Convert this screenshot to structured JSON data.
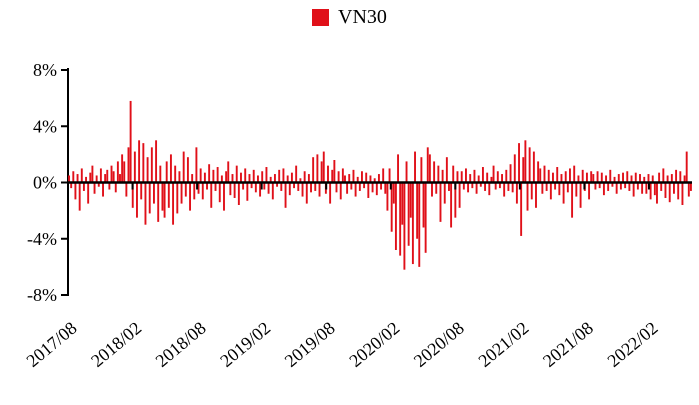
{
  "chart_data": {
    "type": "bar",
    "title": "",
    "legend": [
      "VN30"
    ],
    "legend_position": "top-center",
    "xlabel": "",
    "ylabel": "",
    "ylim": [
      -8,
      8
    ],
    "ytick_values": [
      8,
      4,
      0,
      -4,
      -8
    ],
    "ytick_labels": [
      "8%",
      "4%",
      "0%",
      "-4%",
      "-8%"
    ],
    "xtick_labels": [
      "2017/08",
      "2018/02",
      "2018/08",
      "2019/02",
      "2019/08",
      "2020/02",
      "2020/08",
      "2021/02",
      "2021/08",
      "2022/02"
    ],
    "xtick_month_index": [
      0,
      6,
      12,
      18,
      24,
      30,
      36,
      42,
      48,
      54
    ],
    "total_months": 58,
    "grid": false,
    "bar_color": "#e01019",
    "axis_color": "#000000",
    "series": [
      {
        "name": "VN30",
        "values": [
          0.5,
          -0.4,
          0.8,
          -1.2,
          0.6,
          -2.0,
          1.0,
          -0.6,
          0.4,
          -1.5,
          0.7,
          1.2,
          -0.8,
          0.5,
          -0.3,
          1.0,
          -1.0,
          0.6,
          0.9,
          -0.5,
          1.2,
          0.8,
          -0.7,
          1.5,
          0.6,
          2.0,
          1.5,
          -1.0,
          2.5,
          5.8,
          -1.8,
          2.2,
          -2.5,
          3.0,
          -1.2,
          2.8,
          -3.0,
          1.8,
          -2.2,
          2.5,
          -1.5,
          3.0,
          -2.8,
          1.2,
          -2.0,
          -2.5,
          1.5,
          -1.8,
          2.0,
          -3.0,
          1.2,
          -2.2,
          0.8,
          -1.5,
          2.2,
          -1.0,
          1.8,
          -2.0,
          0.6,
          -1.2,
          2.5,
          -0.8,
          1.0,
          -1.2,
          0.7,
          -0.5,
          1.3,
          -1.8,
          0.9,
          -0.6,
          1.1,
          -1.4,
          0.5,
          -2.0,
          0.8,
          1.5,
          -0.9,
          0.6,
          -1.1,
          1.2,
          -1.6,
          0.7,
          -0.5,
          1.0,
          -1.3,
          0.6,
          -0.4,
          0.9,
          -0.7,
          0.5,
          -1.0,
          0.8,
          -0.5,
          1.1,
          -0.8,
          0.4,
          -1.2,
          0.6,
          -0.3,
          0.9,
          -0.6,
          1.0,
          -1.8,
          0.5,
          -0.9,
          0.7,
          -0.4,
          1.2,
          -0.6,
          0.3,
          -1.0,
          0.8,
          -1.5,
          0.6,
          -0.7,
          1.8,
          -0.6,
          2.0,
          -1.0,
          1.5,
          2.2,
          -0.8,
          1.2,
          -1.5,
          0.9,
          1.6,
          -0.7,
          0.8,
          -1.2,
          1.0,
          0.5,
          -0.8,
          0.6,
          -0.5,
          0.9,
          -1.0,
          0.4,
          -0.6,
          0.8,
          -0.4,
          0.7,
          -1.1,
          0.5,
          -0.7,
          0.3,
          -0.9,
          0.6,
          -0.5,
          1.0,
          -0.8,
          -2.0,
          1.0,
          -3.5,
          -1.5,
          -4.8,
          2.0,
          -5.2,
          -3.0,
          -6.2,
          1.5,
          -4.5,
          -2.5,
          -5.8,
          2.2,
          -4.0,
          -6.0,
          1.8,
          -3.2,
          -5.0,
          2.5,
          2.0,
          -1.0,
          1.5,
          -0.8,
          1.2,
          -2.8,
          0.9,
          -1.5,
          1.8,
          -0.6,
          -3.2,
          1.2,
          -2.5,
          0.8,
          -1.8,
          0.8,
          -0.5,
          1.0,
          -0.7,
          0.6,
          -0.4,
          0.9,
          -0.8,
          0.5,
          -0.3,
          1.1,
          -0.6,
          0.7,
          -0.9,
          0.4,
          1.2,
          -0.5,
          0.8,
          -0.4,
          0.6,
          -1.0,
          0.9,
          -0.6,
          1.3,
          -0.7,
          2.0,
          -1.5,
          2.8,
          -3.8,
          1.8,
          3.0,
          -2.0,
          2.5,
          -1.2,
          2.2,
          -1.8,
          1.5,
          1.0,
          -0.8,
          1.2,
          -0.6,
          0.9,
          -1.2,
          0.7,
          -0.5,
          1.1,
          -0.9,
          0.6,
          -1.5,
          0.8,
          -0.7,
          1.0,
          -2.5,
          1.2,
          -1.0,
          0.5,
          -1.8,
          0.9,
          -0.6,
          0.7,
          -1.2,
          0.8,
          0.6,
          -0.5,
          0.8,
          -0.4,
          0.7,
          -0.9,
          0.5,
          -0.6,
          0.9,
          -0.3,
          0.4,
          -0.8,
          0.6,
          -0.5,
          0.7,
          -0.4,
          0.8,
          -0.6,
          0.5,
          -1.0,
          0.7,
          -0.5,
          0.6,
          -0.8,
          0.4,
          -0.8,
          0.6,
          -1.2,
          0.5,
          -0.9,
          -1.5,
          0.7,
          -0.6,
          1.0,
          -1.1,
          0.5,
          -1.4,
          0.6,
          -0.8,
          0.9,
          -1.2,
          0.8,
          -1.6,
          0.5,
          2.2,
          -1.0,
          -0.6
        ]
      }
    ]
  }
}
